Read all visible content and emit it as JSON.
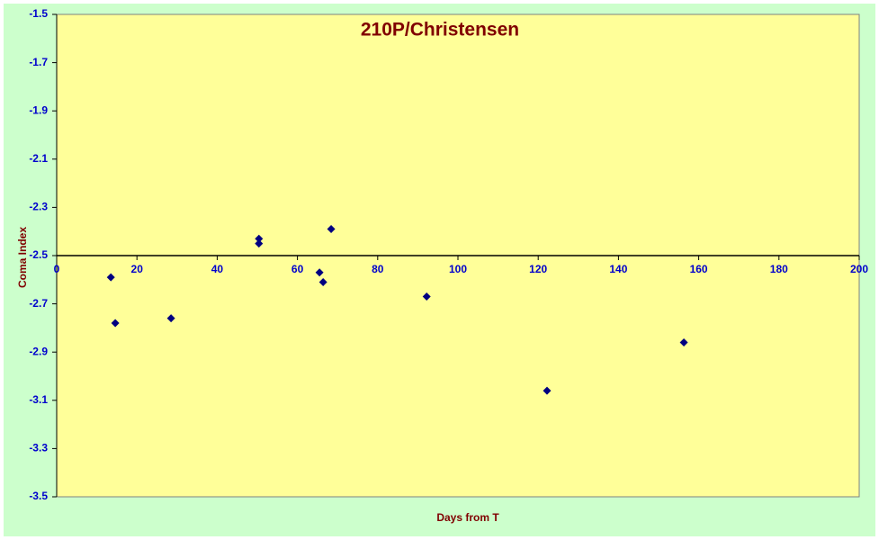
{
  "chart_data": {
    "type": "scatter",
    "title": "210P/Christensen",
    "x_label": "Days from T",
    "y_label": "Coma Index",
    "series": [
      {
        "name": "Coma Index",
        "color": "#000080",
        "x": [
          13.5,
          14.6,
          28.5,
          50.4,
          50.4,
          65.5,
          66.4,
          68.4,
          92.2,
          122.2,
          156.3
        ],
        "values": [
          -2.59,
          -2.78,
          -2.76,
          -2.43,
          -2.45,
          -2.57,
          -2.61,
          -2.39,
          -2.67,
          -3.06,
          -2.86
        ]
      }
    ],
    "xlim": [
      0,
      200
    ],
    "xticks": [
      0,
      20,
      40,
      60,
      80,
      100,
      120,
      140,
      160,
      180,
      200
    ],
    "ylim": [
      -3.5,
      -1.5
    ],
    "yticks": [
      -3.5,
      -3.3,
      -3.1,
      -2.9,
      -2.7,
      -2.5,
      -2.3,
      -2.1,
      -1.9,
      -1.7,
      -1.5
    ],
    "x_axis_crosses": -2.5
  }
}
